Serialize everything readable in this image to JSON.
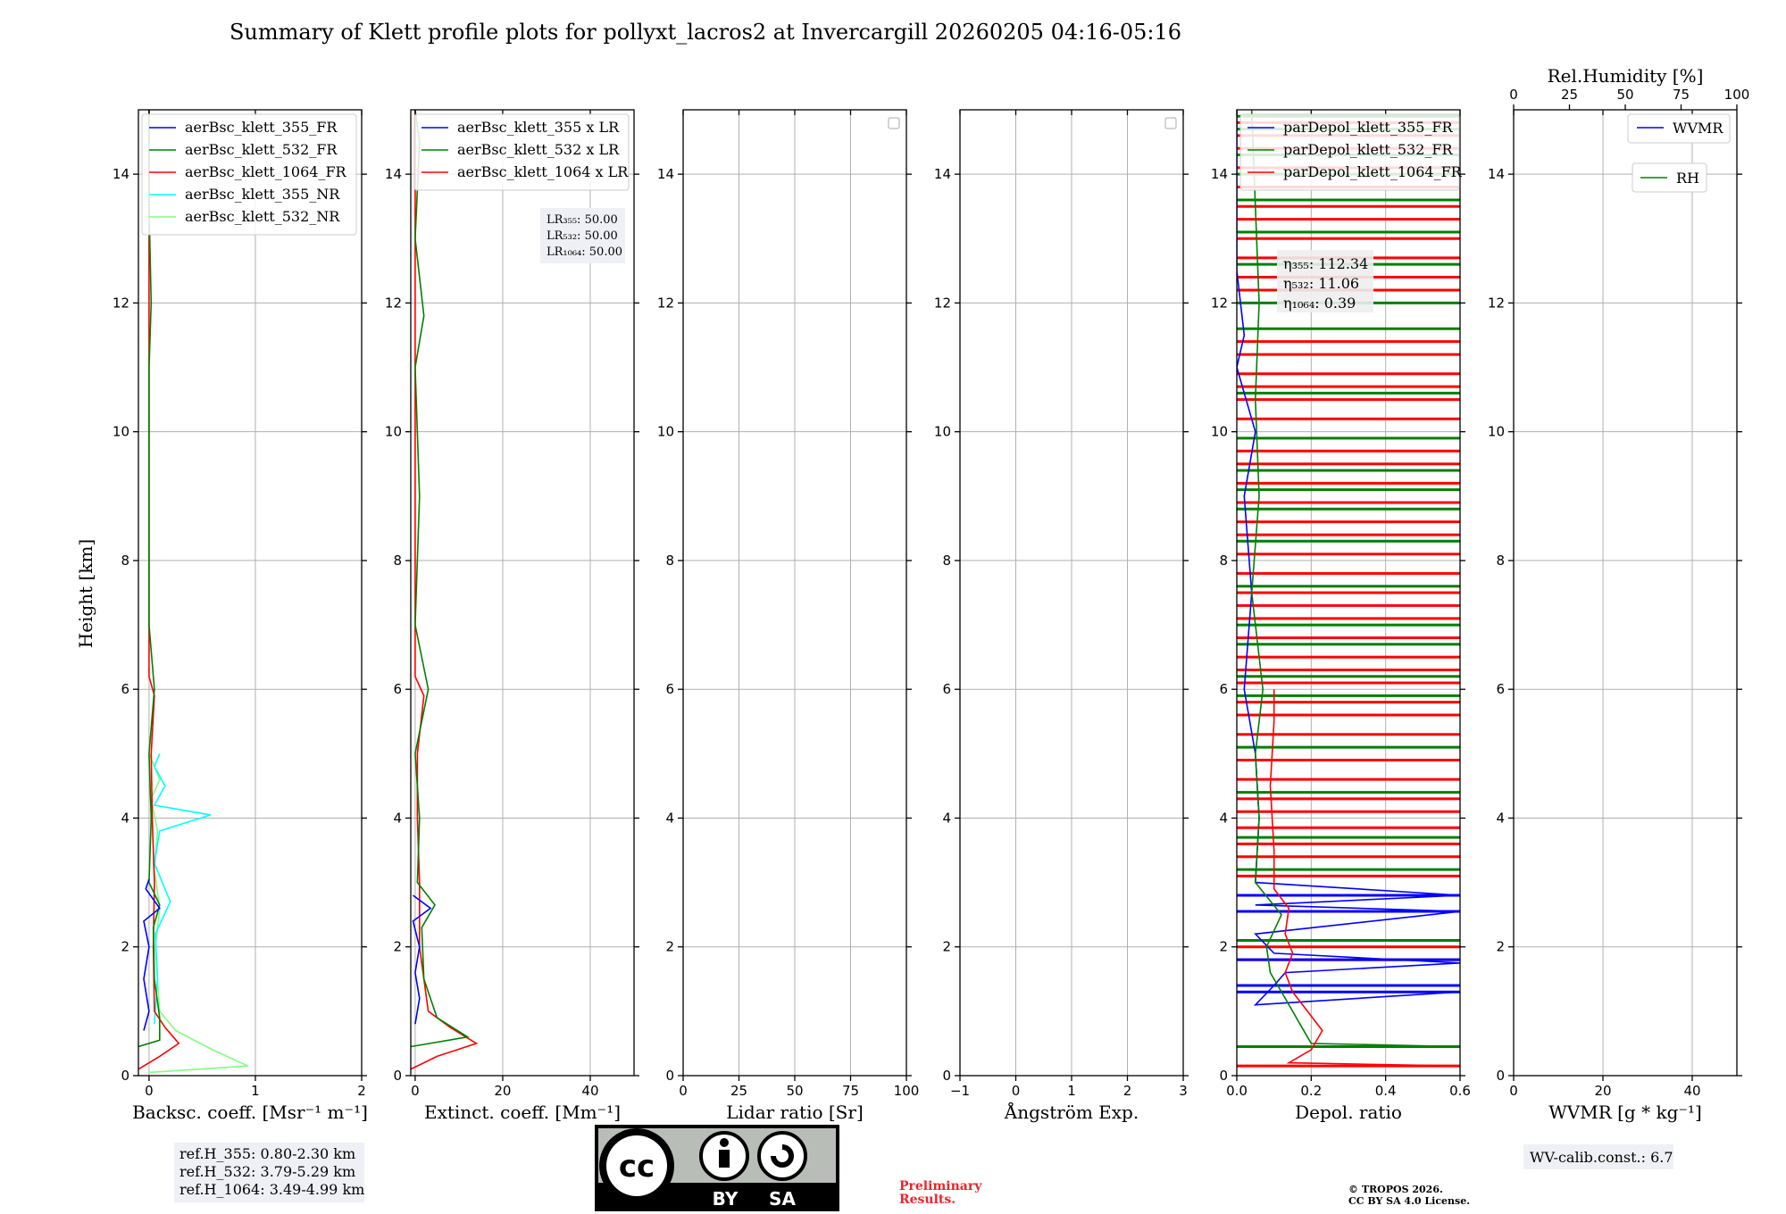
{
  "title": "Summary of Klett profile plots for pollyxt_lacros2 at Invercargill 20260205 04:16-05:16",
  "height_label": "Height [km]",
  "colors": {
    "blue": "#0000ff",
    "green": "#008000",
    "red": "#ff0000",
    "cyan": "#00ffff",
    "lightgreen": "#7fff7f"
  },
  "chart_data": [
    {
      "id": "backscatter",
      "type": "line",
      "xlabel": "Backsc. coeff. [Msr⁻¹ m⁻¹]",
      "xlim": [
        -0.1,
        2
      ],
      "ylim": [
        0,
        15
      ],
      "xticks": [
        0,
        1,
        2
      ],
      "xtick_labels": [
        "0",
        "1",
        "2"
      ],
      "yticks": [
        0,
        2,
        4,
        6,
        8,
        10,
        12,
        14
      ],
      "ytick_labels": [
        "0",
        "2",
        "4",
        "6",
        "8",
        "10",
        "12",
        "14"
      ],
      "legend": [
        "aerBsc_klett_355_FR",
        "aerBsc_klett_532_FR",
        "aerBsc_klett_1064_FR",
        "aerBsc_klett_355_NR",
        "aerBsc_klett_532_NR"
      ],
      "series": [
        {
          "name": "aerBsc_klett_532_NR",
          "color": "#7fff7f",
          "points": [
            [
              0.0,
              0.05
            ],
            [
              0.93,
              0.15
            ],
            [
              0.6,
              0.4
            ],
            [
              0.25,
              0.7
            ],
            [
              0.1,
              1.0
            ],
            [
              0.08,
              1.5
            ],
            [
              0.06,
              2.0
            ],
            [
              0.1,
              2.6
            ],
            [
              0.05,
              3.2
            ],
            [
              0.08,
              3.8
            ],
            [
              0.02,
              4.3
            ],
            [
              0.1,
              4.6
            ],
            [
              0.0,
              5.0
            ]
          ]
        },
        {
          "name": "aerBsc_klett_355_NR",
          "color": "#00ffff",
          "points": [
            [
              0.05,
              0.8
            ],
            [
              0.08,
              1.5
            ],
            [
              0.06,
              2.2
            ],
            [
              0.2,
              2.7
            ],
            [
              0.05,
              3.3
            ],
            [
              0.1,
              3.8
            ],
            [
              0.58,
              4.05
            ],
            [
              0.05,
              4.2
            ],
            [
              0.15,
              4.5
            ],
            [
              0.05,
              4.8
            ],
            [
              0.1,
              5.0
            ]
          ]
        },
        {
          "name": "aerBsc_klett_1064_FR",
          "color": "#ff0000",
          "points": [
            [
              -0.1,
              0.1
            ],
            [
              0.1,
              0.3
            ],
            [
              0.28,
              0.5
            ],
            [
              0.15,
              0.75
            ],
            [
              0.05,
              1.0
            ],
            [
              0.04,
              2.0
            ],
            [
              0.05,
              3.0
            ],
            [
              0.03,
              4.0
            ],
            [
              0.02,
              5.0
            ],
            [
              0.05,
              5.9
            ],
            [
              0.0,
              6.2
            ],
            [
              0.0,
              8.0
            ],
            [
              0.0,
              10.0
            ],
            [
              0.0,
              12.0
            ],
            [
              0.0,
              15.0
            ]
          ]
        },
        {
          "name": "aerBsc_klett_532_FR",
          "color": "#008000",
          "points": [
            [
              -0.1,
              0.45
            ],
            [
              0.1,
              0.55
            ],
            [
              0.1,
              0.9
            ],
            [
              0.05,
              1.5
            ],
            [
              0.04,
              2.3
            ],
            [
              0.1,
              2.65
            ],
            [
              0.0,
              3.0
            ],
            [
              0.02,
              4.0
            ],
            [
              0.0,
              5.0
            ],
            [
              0.05,
              6.0
            ],
            [
              0.0,
              7.0
            ],
            [
              0.0,
              9.0
            ],
            [
              0.0,
              11.0
            ],
            [
              0.02,
              12.0
            ],
            [
              0.0,
              13.5
            ],
            [
              0.0,
              15.0
            ]
          ]
        },
        {
          "name": "aerBsc_klett_355_FR",
          "color": "#0000ff",
          "points": [
            [
              -0.05,
              0.7
            ],
            [
              0.0,
              1.0
            ],
            [
              -0.05,
              1.5
            ],
            [
              0.0,
              2.0
            ],
            [
              -0.05,
              2.4
            ],
            [
              0.1,
              2.6
            ],
            [
              -0.03,
              2.9
            ],
            [
              0.0,
              3.05
            ]
          ]
        }
      ]
    },
    {
      "id": "extinction",
      "type": "line",
      "xlabel": "Extinct. coeff. [Mm⁻¹]",
      "xlim": [
        -1,
        50
      ],
      "ylim": [
        0,
        15
      ],
      "xticks": [
        0,
        20,
        40
      ],
      "xtick_labels": [
        "0",
        "20",
        "40"
      ],
      "yticks": [
        0,
        2,
        4,
        6,
        8,
        10,
        12,
        14
      ],
      "ytick_labels": [
        "0",
        "2",
        "4",
        "6",
        "8",
        "10",
        "12",
        "14"
      ],
      "legend": [
        "aerBsc_klett_355 x LR",
        "aerBsc_klett_532 x LR",
        "aerBsc_klett_1064 x LR"
      ],
      "series": [
        {
          "name": "aerBsc_klett_1064 x LR",
          "color": "#ff0000",
          "points": [
            [
              -1,
              0.1
            ],
            [
              5,
              0.3
            ],
            [
              14,
              0.5
            ],
            [
              8,
              0.75
            ],
            [
              3,
              1.0
            ],
            [
              1,
              2.0
            ],
            [
              1,
              3.0
            ],
            [
              0.5,
              4.0
            ],
            [
              0.5,
              5.0
            ],
            [
              2,
              5.9
            ],
            [
              0,
              6.2
            ],
            [
              0,
              8.0
            ],
            [
              0,
              10.0
            ],
            [
              0,
              12.0
            ],
            [
              0,
              15.0
            ]
          ]
        },
        {
          "name": "aerBsc_klett_532 x LR",
          "color": "#008000",
          "points": [
            [
              -1,
              0.45
            ],
            [
              12,
              0.6
            ],
            [
              5,
              0.9
            ],
            [
              2,
              1.5
            ],
            [
              1.5,
              2.3
            ],
            [
              4.5,
              2.65
            ],
            [
              0.5,
              3.0
            ],
            [
              1,
              4.0
            ],
            [
              0,
              5.0
            ],
            [
              3,
              6.0
            ],
            [
              0,
              7.0
            ],
            [
              1,
              9.0
            ],
            [
              0,
              11.0
            ],
            [
              2,
              11.8
            ],
            [
              0,
              13.0
            ],
            [
              1,
              14.5
            ],
            [
              0,
              15.0
            ]
          ]
        },
        {
          "name": "aerBsc_klett_355 x LR",
          "color": "#0000ff",
          "points": [
            [
              0,
              0.8
            ],
            [
              1,
              1.2
            ],
            [
              0,
              1.6
            ],
            [
              1,
              2.0
            ],
            [
              -0.5,
              2.4
            ],
            [
              3.5,
              2.6
            ],
            [
              -0.5,
              2.8
            ]
          ]
        }
      ],
      "annotation": [
        "LR₃₅₅: 50.00",
        "LR₅₃₂: 50.00",
        "LR₁₀₆₄: 50.00"
      ]
    },
    {
      "id": "lidar_ratio",
      "type": "line",
      "xlabel": "Lidar ratio [Sr]",
      "xlim": [
        0,
        100
      ],
      "ylim": [
        0,
        15
      ],
      "xticks": [
        0,
        25,
        50,
        75,
        100
      ],
      "xtick_labels": [
        "0",
        "25",
        "50",
        "75",
        "100"
      ],
      "yticks": [
        0,
        2,
        4,
        6,
        8,
        10,
        12,
        14
      ],
      "ytick_labels": [
        "0",
        "2",
        "4",
        "6",
        "8",
        "10",
        "12",
        "14"
      ],
      "legend": [],
      "series": []
    },
    {
      "id": "angstrom",
      "type": "line",
      "xlabel": "Ångström Exp.",
      "xlim": [
        -1,
        3
      ],
      "ylim": [
        0,
        15
      ],
      "xticks": [
        -1,
        0,
        1,
        2,
        3
      ],
      "xtick_labels": [
        "−1",
        "0",
        "1",
        "2",
        "3"
      ],
      "yticks": [
        0,
        2,
        4,
        6,
        8,
        10,
        12,
        14
      ],
      "ytick_labels": [
        "0",
        "2",
        "4",
        "6",
        "8",
        "10",
        "12",
        "14"
      ],
      "legend": [],
      "series": []
    },
    {
      "id": "depol",
      "type": "line",
      "xlabel": "Depol. ratio",
      "xlim": [
        0,
        0.6
      ],
      "ylim": [
        0,
        15
      ],
      "xticks": [
        0,
        0.2,
        0.4,
        0.6
      ],
      "xtick_labels": [
        "0.0",
        "0.2",
        "0.4",
        "0.6"
      ],
      "yticks": [
        0,
        2,
        4,
        6,
        8,
        10,
        12,
        14
      ],
      "ytick_labels": [
        "0",
        "2",
        "4",
        "6",
        "8",
        "10",
        "12",
        "14"
      ],
      "legend": [
        "parDepol_klett_355_FR",
        "parDepol_klett_532_FR",
        "parDepol_klett_1064_FR"
      ],
      "series": [
        {
          "name": "parDepol_klett_355_FR",
          "color": "#0000ff",
          "points": [
            [
              0.6,
              1.3
            ],
            [
              0.05,
              1.1
            ],
            [
              0.1,
              1.4
            ],
            [
              0.13,
              1.6
            ],
            [
              0.6,
              1.75
            ],
            [
              0.1,
              1.9
            ],
            [
              0.05,
              2.2
            ],
            [
              0.6,
              2.55
            ],
            [
              0.05,
              2.65
            ],
            [
              0.6,
              2.8
            ],
            [
              0.05,
              3.0
            ],
            [
              0.06,
              4.0
            ],
            [
              0.05,
              5.0
            ],
            [
              0.02,
              6.0
            ],
            [
              0.04,
              7.5
            ],
            [
              0.02,
              9.0
            ],
            [
              0.05,
              10.0
            ],
            [
              0.0,
              11.0
            ],
            [
              0.02,
              11.5
            ],
            [
              0.0,
              12.5
            ],
            [
              0.0,
              15.0
            ]
          ]
        },
        {
          "name": "parDepol_klett_532_FR",
          "color": "#008000",
          "points": [
            [
              0.6,
              0.45
            ],
            [
              0.2,
              0.5
            ],
            [
              0.17,
              0.8
            ],
            [
              0.13,
              1.2
            ],
            [
              0.09,
              1.6
            ],
            [
              0.08,
              2.0
            ],
            [
              0.12,
              2.5
            ],
            [
              0.05,
              3.0
            ],
            [
              0.06,
              4.0
            ],
            [
              0.05,
              5.0
            ],
            [
              0.07,
              6.0
            ],
            [
              0.04,
              7.5
            ],
            [
              0.06,
              9.0
            ],
            [
              0.05,
              10.5
            ],
            [
              0.06,
              12.0
            ],
            [
              0.05,
              13.5
            ],
            [
              0.04,
              15.0
            ]
          ]
        },
        {
          "name": "parDepol_klett_1064_FR",
          "color": "#ff0000",
          "points": [
            [
              0.6,
              0.15
            ],
            [
              0.14,
              0.2
            ],
            [
              0.2,
              0.4
            ],
            [
              0.23,
              0.7
            ],
            [
              0.19,
              1.0
            ],
            [
              0.15,
              1.3
            ],
            [
              0.13,
              1.6
            ],
            [
              0.15,
              1.9
            ],
            [
              0.13,
              2.2
            ],
            [
              0.14,
              2.6
            ],
            [
              0.1,
              2.9
            ],
            [
              0.1,
              3.5
            ],
            [
              0.09,
              4.5
            ],
            [
              0.1,
              5.5
            ],
            [
              0.1,
              6.0
            ]
          ]
        }
      ],
      "hlines_red": [
        0.15,
        1.8,
        2.0,
        2.8,
        3.1,
        3.4,
        3.6,
        3.85,
        4.1,
        4.3,
        4.6,
        4.9,
        5.3,
        5.6,
        5.8,
        6.1,
        6.3,
        6.5,
        6.8,
        7.1,
        7.3,
        7.5,
        7.8,
        8.1,
        8.4,
        8.6,
        8.9,
        9.2,
        9.5,
        9.7,
        10.2,
        10.5,
        10.7,
        10.9,
        11.2,
        11.4,
        12.2,
        12.4,
        12.7,
        13.0,
        13.3,
        13.5,
        13.8,
        14.1,
        14.4,
        14.6,
        14.8
      ],
      "hlines_green": [
        0.45,
        2.1,
        3.2,
        3.7,
        4.4,
        5.1,
        5.9,
        6.2,
        6.7,
        7.0,
        7.6,
        8.3,
        8.8,
        9.1,
        9.4,
        9.9,
        10.6,
        11.6,
        12.0,
        12.6,
        13.1,
        13.6,
        14.0,
        14.3,
        14.7,
        14.9
      ],
      "hlines_blue": [
        1.3,
        1.4,
        1.8,
        2.55,
        2.8
      ],
      "annotation": [
        "η₃₅₅: 112.34",
        "η₅₃₂: 11.06",
        "η₁₀₆₄: 0.39"
      ]
    },
    {
      "id": "wvmr",
      "type": "line",
      "xlabel": "WVMR [g * kg⁻¹]",
      "xlim": [
        0,
        50
      ],
      "ylim": [
        0,
        15
      ],
      "xticks": [
        0,
        20,
        40
      ],
      "xtick_labels": [
        "0",
        "20",
        "40"
      ],
      "yticks": [
        0,
        2,
        4,
        6,
        8,
        10,
        12,
        14
      ],
      "ytick_labels": [
        "0",
        "2",
        "4",
        "6",
        "8",
        "10",
        "12",
        "14"
      ],
      "top_axis_label": "Rel.Humidity [%]",
      "top_xlim": [
        0,
        100
      ],
      "top_xticks": [
        0,
        25,
        50,
        75,
        100
      ],
      "top_xtick_labels": [
        "0",
        "25",
        "50",
        "75",
        "100"
      ],
      "legend": [
        "WVMR",
        "RH"
      ],
      "series": []
    }
  ],
  "ref_box": [
    "ref.H_355: 0.80-2.30 km",
    "ref.H_532: 3.79-5.29 km",
    "ref.H_1064: 3.49-4.99 km"
  ],
  "wv_calib": "WV-calib.const.: 6.7",
  "license_badge": {
    "cc": "cc",
    "by": "BY",
    "sa": "SA"
  },
  "preliminary": [
    "Preliminary",
    "Results."
  ],
  "copyright": [
    "© TROPOS 2026.",
    "CC BY SA 4.0 License."
  ]
}
